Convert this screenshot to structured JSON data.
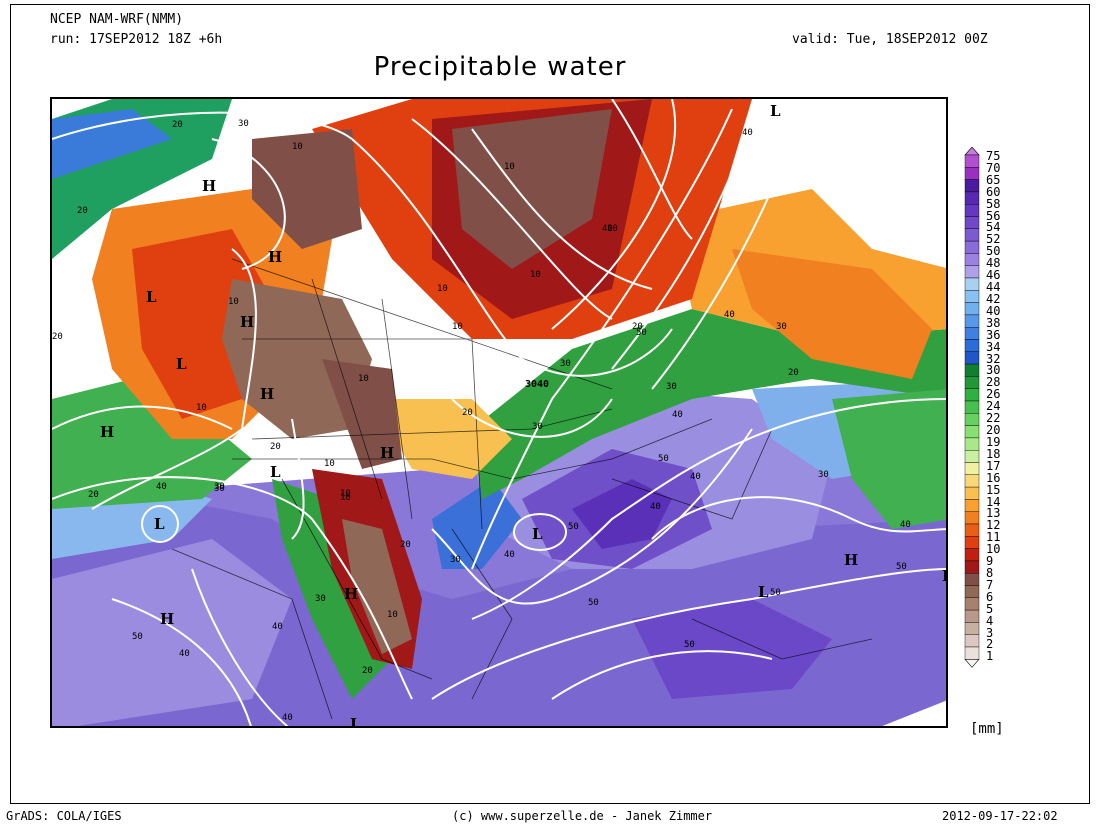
{
  "header": {
    "model": "NCEP NAM-WRF(NMM)",
    "run": "run: 17SEP2012 18Z +6h",
    "valid": "valid: Tue, 18SEP2012 00Z",
    "title": "Precipitable water"
  },
  "colorbar": {
    "units": "[mm]",
    "levels": [
      "75",
      "70",
      "65",
      "60",
      "58",
      "56",
      "54",
      "52",
      "50",
      "48",
      "46",
      "44",
      "42",
      "40",
      "38",
      "36",
      "34",
      "32",
      "30",
      "28",
      "26",
      "24",
      "22",
      "20",
      "19",
      "18",
      "17",
      "16",
      "15",
      "14",
      "13",
      "12",
      "11",
      "10",
      "9",
      "8",
      "7",
      "6",
      "5",
      "4",
      "3",
      "2",
      "1"
    ],
    "colors": [
      "#c878e0",
      "#b050d0",
      "#9a30c0",
      "#4a1aa0",
      "#5828b0",
      "#6438c0",
      "#7048c8",
      "#7c5ad0",
      "#8a6cd8",
      "#9c82e0",
      "#b0a0e8",
      "#a8d0f0",
      "#88c0f0",
      "#70b0ee",
      "#5898e8",
      "#4080e0",
      "#2a6cd8",
      "#2056c8",
      "#108030",
      "#209838",
      "#30b040",
      "#48c050",
      "#68d060",
      "#88e070",
      "#a8e888",
      "#c8f0a0",
      "#f0f0a0",
      "#f8d878",
      "#f8c050",
      "#f8a030",
      "#f08020",
      "#e86018",
      "#e04010",
      "#c02010",
      "#a01818",
      "#805048",
      "#906858",
      "#a88070",
      "#b89888",
      "#c8b0a0",
      "#dcc8c0",
      "#ece0dc",
      "#f8f4f2"
    ]
  },
  "map": {
    "contour_labels": [
      "20",
      "30",
      "10",
      "10",
      "10",
      "10",
      "20",
      "10",
      "10",
      "10",
      "10",
      "10",
      "10",
      "10",
      "20",
      "30",
      "30",
      "3040",
      "20",
      "30",
      "40",
      "50",
      "30",
      "20",
      "10",
      "30",
      "40",
      "10",
      "20",
      "50",
      "40",
      "30",
      "50",
      "40",
      "50",
      "50",
      "40",
      "40",
      "50",
      "30",
      "40",
      "30",
      "40",
      "20",
      "20",
      "30",
      "40",
      "50",
      "40",
      "50",
      "40",
      "40",
      "20",
      "20"
    ],
    "pressure_centers": [
      "H",
      "H",
      "L",
      "L",
      "H",
      "H",
      "H",
      "L",
      "H",
      "H",
      "L",
      "L",
      "L",
      "H",
      "H",
      "L",
      "L",
      "E"
    ]
  },
  "footer": {
    "left": "GrADS: COLA/IGES",
    "center": "(c) www.superzelle.de - Janek Zimmer",
    "right": "2012-09-17-22:02"
  }
}
